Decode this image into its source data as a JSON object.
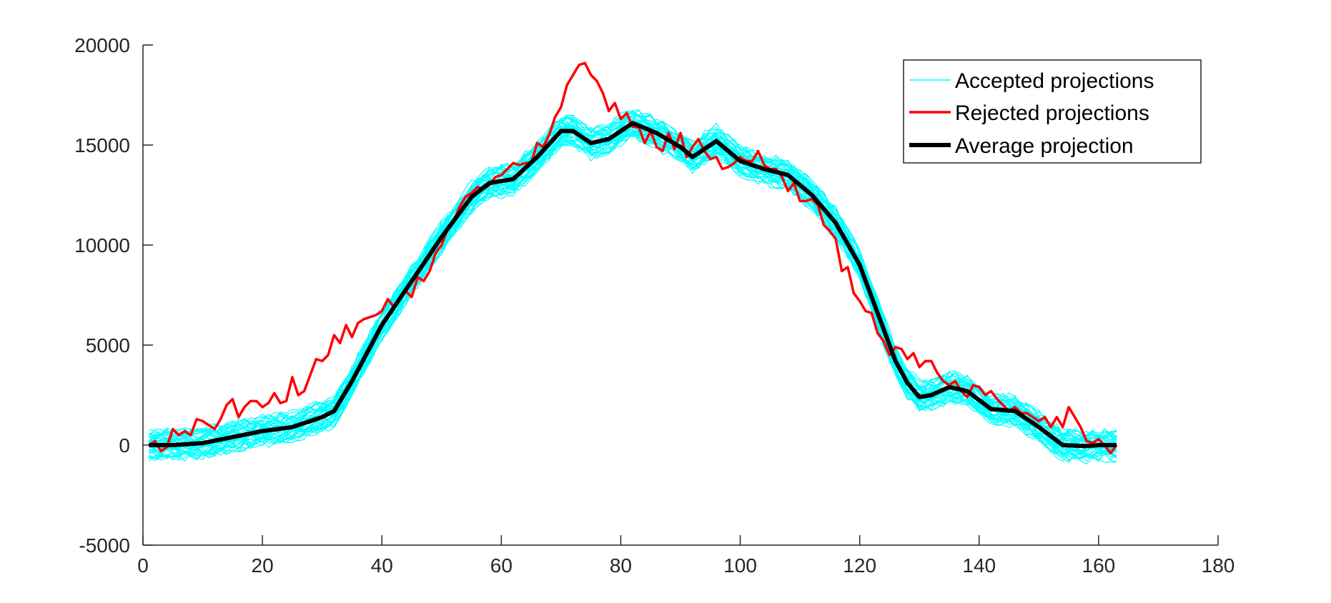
{
  "chart_data": {
    "type": "line",
    "title": "",
    "xlabel": "",
    "ylabel": "",
    "xlim": [
      0,
      180
    ],
    "ylim": [
      -5000,
      20000
    ],
    "xticks": [
      0,
      20,
      40,
      60,
      80,
      100,
      120,
      140,
      160,
      180
    ],
    "yticks": [
      -5000,
      0,
      5000,
      10000,
      15000,
      20000
    ],
    "xtick_labels": [
      "0",
      "20",
      "40",
      "60",
      "80",
      "100",
      "120",
      "140",
      "160",
      "180"
    ],
    "ytick_labels": [
      "-5000",
      "0",
      "5000",
      "10000",
      "15000",
      "20000"
    ],
    "grid": false,
    "legend_position": "top-right",
    "band_half_width": 900,
    "series": [
      {
        "name": "Accepted projections",
        "color": "#00ffff",
        "style": "band of many thin lines around the average projection",
        "x": [
          1,
          5,
          10,
          15,
          20,
          25,
          30,
          32,
          35,
          40,
          45,
          50,
          55,
          58,
          62,
          66,
          70,
          72,
          75,
          78,
          82,
          86,
          90,
          92,
          96,
          100,
          104,
          108,
          112,
          116,
          120,
          124,
          126,
          128,
          130,
          132,
          135,
          138,
          142,
          146,
          150,
          154,
          158,
          160,
          163
        ],
        "values": [
          0,
          0,
          100,
          400,
          700,
          900,
          1400,
          1700,
          3200,
          6000,
          8200,
          10400,
          12400,
          13100,
          13300,
          14400,
          15700,
          15700,
          15100,
          15300,
          16100,
          15600,
          14900,
          14400,
          15200,
          14200,
          13800,
          13500,
          12500,
          11100,
          9000,
          5800,
          4200,
          3100,
          2400,
          2500,
          2900,
          2700,
          1800,
          1700,
          900,
          0,
          -50,
          0,
          0
        ]
      },
      {
        "name": "Rejected projections",
        "color": "#ff0000",
        "x": [
          1,
          2,
          3,
          4,
          5,
          6,
          7,
          8,
          9,
          10,
          11,
          12,
          13,
          14,
          15,
          16,
          17,
          18,
          19,
          20,
          21,
          22,
          23,
          24,
          25,
          26,
          27,
          28,
          29,
          30,
          31,
          32,
          33,
          34,
          35,
          36,
          37,
          38,
          39,
          40,
          41,
          42,
          43,
          44,
          45,
          46,
          47,
          48,
          49,
          50,
          51,
          52,
          53,
          54,
          55,
          56,
          57,
          58,
          59,
          60,
          61,
          62,
          63,
          64,
          65,
          66,
          67,
          68,
          69,
          70,
          71,
          72,
          73,
          74,
          75,
          76,
          77,
          78,
          79,
          80,
          81,
          82,
          83,
          84,
          85,
          86,
          87,
          88,
          89,
          90,
          91,
          92,
          93,
          94,
          95,
          96,
          97,
          98,
          99,
          100,
          101,
          102,
          103,
          104,
          105,
          106,
          107,
          108,
          109,
          110,
          111,
          112,
          113,
          114,
          115,
          116,
          117,
          118,
          119,
          120,
          121,
          122,
          123,
          124,
          125,
          126,
          127,
          128,
          129,
          130,
          131,
          132,
          133,
          134,
          135,
          136,
          137,
          138,
          139,
          140,
          141,
          142,
          143,
          144,
          145,
          146,
          147,
          148,
          149,
          150,
          151,
          152,
          153,
          154,
          155,
          156,
          157,
          158,
          159,
          160,
          161,
          162,
          163
        ],
        "values": [
          0,
          200,
          -300,
          -100,
          800,
          500,
          700,
          500,
          1300,
          1200,
          1000,
          800,
          1300,
          2000,
          2300,
          1400,
          1900,
          2200,
          2200,
          1900,
          2100,
          2600,
          2100,
          2200,
          3400,
          2500,
          2700,
          3500,
          4300,
          4200,
          4500,
          5500,
          5100,
          6000,
          5400,
          6100,
          6300,
          6400,
          6500,
          6700,
          7300,
          6900,
          7300,
          7700,
          7400,
          8400,
          8200,
          8700,
          9600,
          10000,
          10800,
          11200,
          11900,
          12400,
          12600,
          12900,
          12800,
          13000,
          13400,
          13500,
          13800,
          14100,
          14000,
          14100,
          14100,
          15100,
          14900,
          15500,
          16400,
          16900,
          18000,
          18500,
          19000,
          19100,
          18500,
          18200,
          17600,
          16700,
          17100,
          16300,
          16600,
          15900,
          15900,
          15100,
          15700,
          14900,
          14700,
          15600,
          14800,
          15600,
          14400,
          14900,
          15300,
          14700,
          14300,
          14400,
          13800,
          13900,
          14100,
          14400,
          14200,
          14200,
          14700,
          14000,
          13800,
          13800,
          13400,
          12700,
          13100,
          12200,
          12200,
          12300,
          12000,
          11000,
          10700,
          10300,
          8700,
          8900,
          7600,
          7200,
          6700,
          6600,
          5600,
          5200,
          4500,
          4900,
          4800,
          4300,
          4600,
          3900,
          4200,
          4200,
          3600,
          3200,
          3000,
          3200,
          2700,
          2400,
          3000,
          2900,
          2500,
          2700,
          2300,
          2000,
          1700,
          1900,
          1600,
          1600,
          1400,
          1200,
          1400,
          900,
          1400,
          900,
          1900,
          1400,
          900,
          200,
          100,
          300,
          0,
          -400,
          0
        ]
      },
      {
        "name": "Average projection",
        "color": "#000000",
        "x": [
          1,
          5,
          10,
          15,
          20,
          25,
          30,
          32,
          35,
          40,
          45,
          50,
          55,
          58,
          62,
          66,
          70,
          72,
          75,
          78,
          82,
          86,
          90,
          92,
          96,
          100,
          104,
          108,
          112,
          116,
          120,
          124,
          126,
          128,
          130,
          132,
          135,
          138,
          142,
          146,
          150,
          154,
          158,
          160,
          163
        ],
        "values": [
          0,
          0,
          100,
          400,
          700,
          900,
          1400,
          1700,
          3200,
          6000,
          8200,
          10400,
          12400,
          13100,
          13300,
          14400,
          15700,
          15700,
          15100,
          15300,
          16100,
          15600,
          14900,
          14400,
          15200,
          14200,
          13800,
          13500,
          12500,
          11100,
          9000,
          5800,
          4200,
          3100,
          2400,
          2500,
          2900,
          2700,
          1800,
          1700,
          900,
          0,
          -50,
          0,
          0
        ]
      }
    ]
  }
}
